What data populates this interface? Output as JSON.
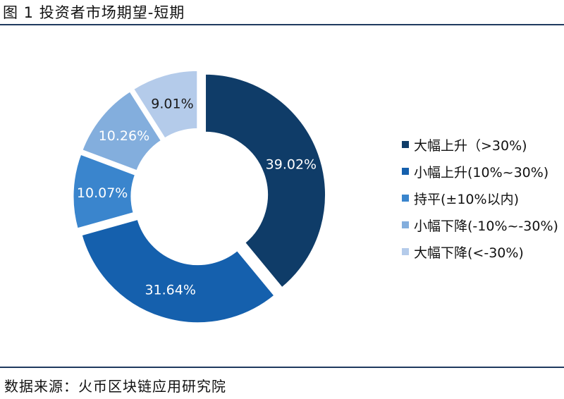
{
  "title": "图 1 投资者市场期望-短期",
  "source": "数据来源：火币区块链应用研究院",
  "chart_data": {
    "type": "pie",
    "donut": true,
    "legend_position": "right",
    "slices": [
      {
        "label": "大幅上升（>30%)",
        "value": 39.02,
        "display": "39.02%",
        "color": "#0f3c68"
      },
      {
        "label": "小幅上升(10%~30%)",
        "value": 31.64,
        "display": "31.64%",
        "color": "#1560ad"
      },
      {
        "label": "持平(±10%以内)",
        "value": 10.07,
        "display": "10.07%",
        "color": "#3a85cd"
      },
      {
        "label": "小幅下降(-10%~-30%)",
        "value": 10.26,
        "display": "10.26%",
        "color": "#83aedd"
      },
      {
        "label": "大幅下降(<-30%)",
        "value": 9.01,
        "display": "9.01%",
        "color": "#b4cbea"
      }
    ]
  }
}
